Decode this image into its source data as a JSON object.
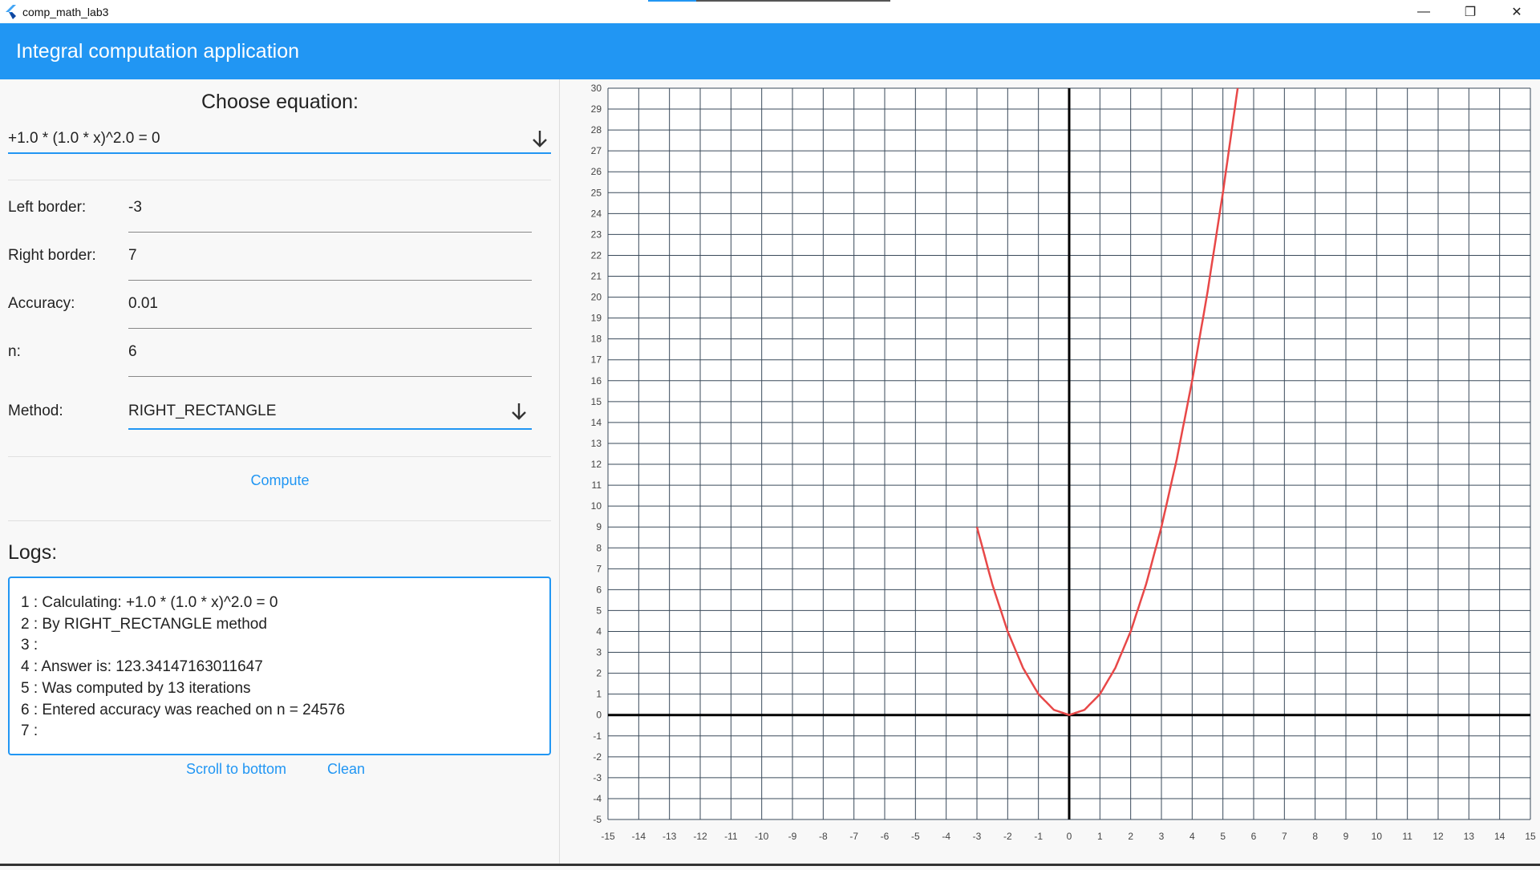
{
  "window": {
    "title": "comp_math_lab3",
    "controls": {
      "minimize": "—",
      "maximize": "❐",
      "close": "✕"
    }
  },
  "appbar": {
    "title": "Integral computation application"
  },
  "equation": {
    "heading": "Choose equation:",
    "selected": "+1.0 * (1.0 * x)^2.0 = 0"
  },
  "fields": {
    "left_border": {
      "label": "Left border:",
      "value": "-3"
    },
    "right_border": {
      "label": "Right border:",
      "value": "7"
    },
    "accuracy": {
      "label": "Accuracy:",
      "value": "0.01"
    },
    "n": {
      "label": "n:",
      "value": "6"
    },
    "method": {
      "label": "Method:",
      "value": "RIGHT_RECTANGLE"
    }
  },
  "compute_label": "Compute",
  "logs": {
    "title": "Logs:",
    "lines": [
      "1 : Calculating: +1.0 * (1.0 * x)^2.0 = 0",
      "2 : By RIGHT_RECTANGLE method",
      "3 :",
      "4 : Answer is: 123.34147163011647",
      "5 : Was computed by 13 iterations",
      "6 : Entered accuracy was reached on n = 24576",
      "7 :"
    ],
    "scroll_label": "Scroll to bottom",
    "clean_label": "Clean"
  },
  "colors": {
    "accent": "#2196f3",
    "curve": "#e84848",
    "grid": "#3a4a5a",
    "axis": "#000000"
  },
  "chart_data": {
    "type": "line",
    "title": "",
    "xlabel": "",
    "ylabel": "",
    "xlim": [
      -15,
      15
    ],
    "ylim": [
      -5,
      30
    ],
    "x_ticks": [
      "-15",
      "-14",
      "-13",
      "-12",
      "-11",
      "-10",
      "-9",
      "-8",
      "-7",
      "-6",
      "-5",
      "-4",
      "-3",
      "-2",
      "-1",
      "0",
      "1",
      "2",
      "3",
      "4",
      "5",
      "6",
      "7",
      "8",
      "9",
      "10",
      "11",
      "12",
      "13",
      "14",
      "15"
    ],
    "y_ticks": [
      "-5",
      "-4",
      "-3",
      "-2",
      "-1",
      "0",
      "1",
      "2",
      "3",
      "4",
      "5",
      "6",
      "7",
      "8",
      "9",
      "10",
      "11",
      "12",
      "13",
      "14",
      "15",
      "16",
      "17",
      "18",
      "19",
      "20",
      "21",
      "22",
      "23",
      "24",
      "25",
      "26",
      "27",
      "28",
      "29",
      "30"
    ],
    "grid": true,
    "series": [
      {
        "x": [
          -3,
          -2.5,
          -2,
          -1.5,
          -1,
          -0.5,
          0,
          0.5,
          1,
          1.5,
          2,
          2.5,
          3,
          3.5,
          4,
          4.5,
          5,
          5.48
        ],
        "y": [
          9,
          6.25,
          4,
          2.25,
          1,
          0.25,
          0,
          0.25,
          1,
          2.25,
          4,
          6.25,
          9,
          12.25,
          16,
          20.25,
          25,
          30
        ]
      }
    ]
  }
}
